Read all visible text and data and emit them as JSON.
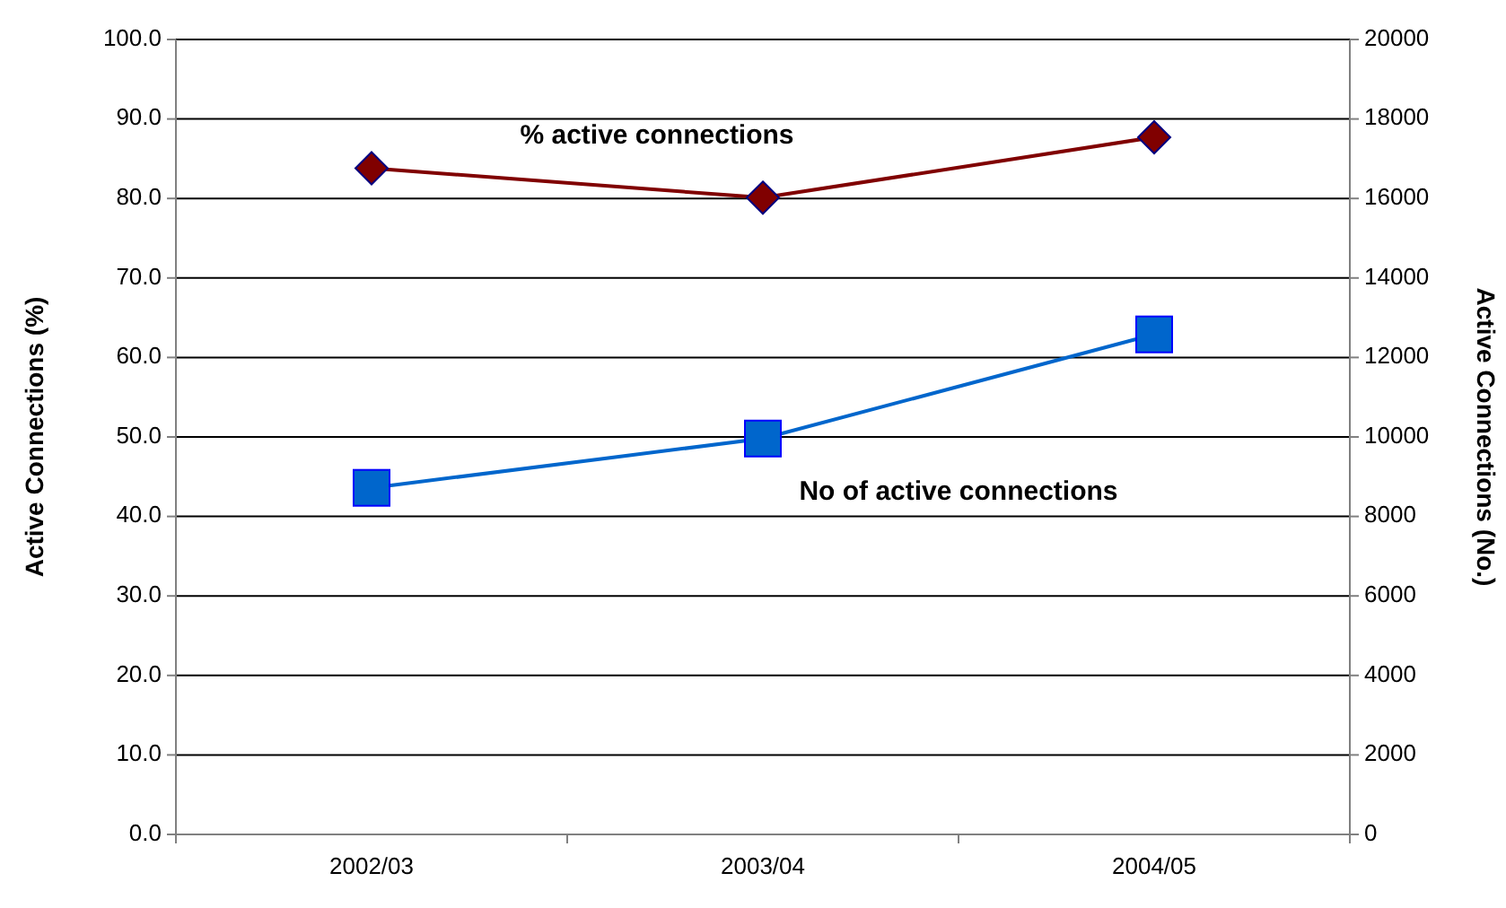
{
  "chart_data": {
    "type": "line",
    "categories": [
      "2002/03",
      "2003/04",
      "2004/05"
    ],
    "series": [
      {
        "name": "% active connections",
        "color": "#800000",
        "values": [
          83.8,
          80.1,
          87.7
        ],
        "marker": "diamond"
      },
      {
        "name": "No of active connections",
        "color": "#0066cc",
        "values": [
          8720,
          9960,
          12580
        ],
        "marker": "square",
        "axis": "y2"
      }
    ],
    "ylabel": "Active Connections (%)",
    "y2label": "Active Connections (No.)",
    "ylim": [
      0,
      100
    ],
    "yticks": [
      {
        "value": 0,
        "label": "0.0"
      },
      {
        "value": 10,
        "label": "10.0"
      },
      {
        "value": 20,
        "label": "20.0"
      },
      {
        "value": 30,
        "label": "30.0"
      },
      {
        "value": 40,
        "label": "40.0"
      },
      {
        "value": 50,
        "label": "50.0"
      },
      {
        "value": 60,
        "label": "60.0"
      },
      {
        "value": 70,
        "label": "70.0"
      },
      {
        "value": 80,
        "label": "80.0"
      },
      {
        "value": 90,
        "label": "90.0"
      },
      {
        "value": 100,
        "label": "100.0"
      }
    ],
    "y2lim": [
      0,
      20000
    ],
    "y2ticks": [
      0,
      2000,
      4000,
      6000,
      8000,
      10000,
      12000,
      14000,
      16000,
      18000,
      20000
    ],
    "grid": "y",
    "legend": false
  }
}
